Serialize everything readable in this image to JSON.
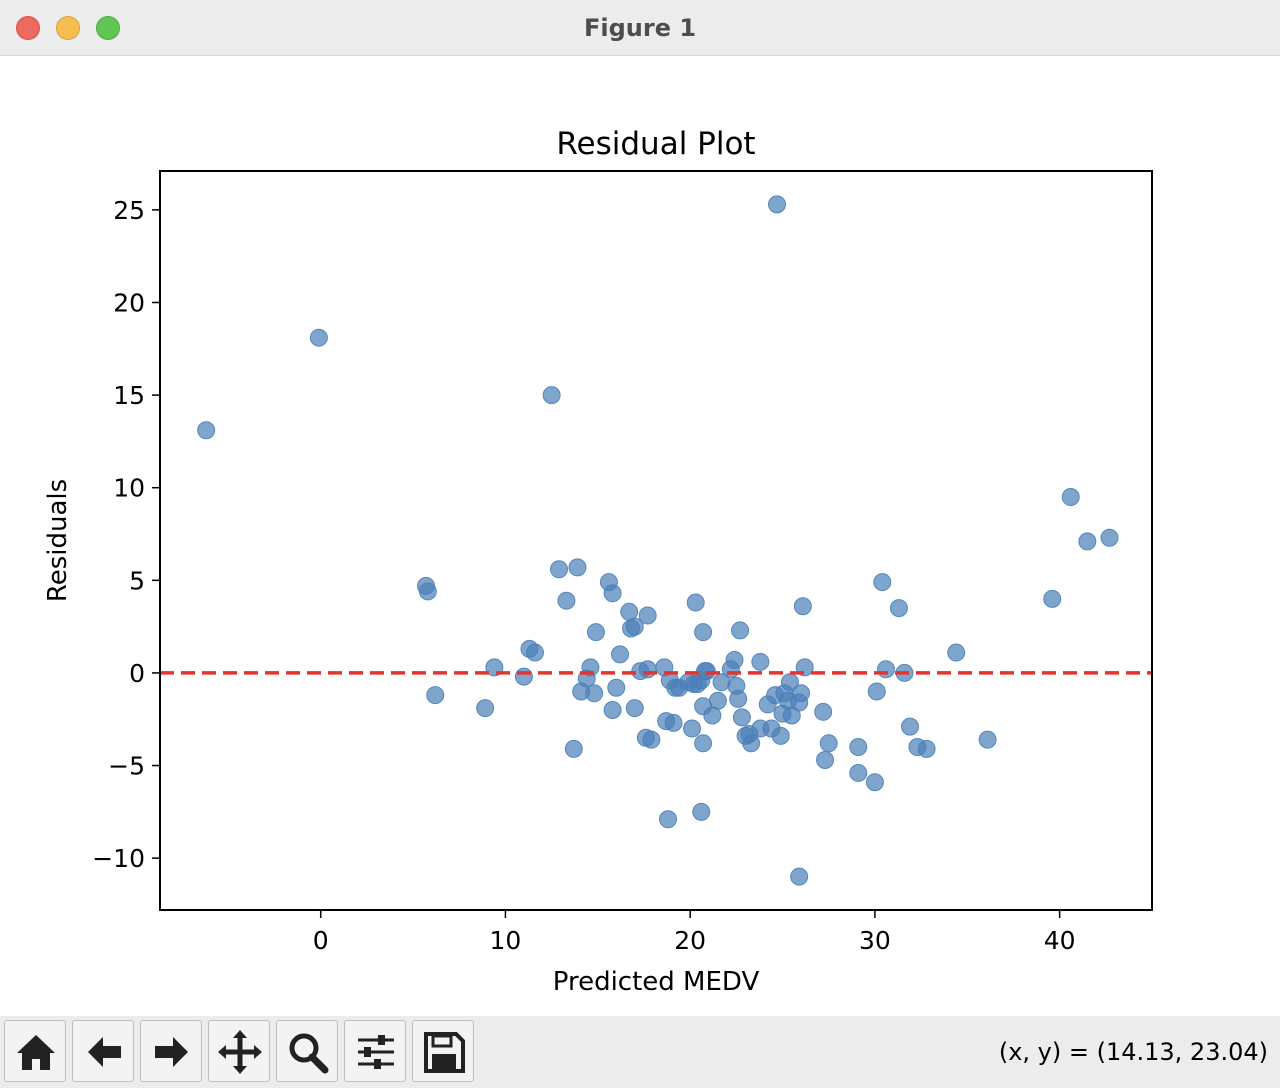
{
  "window": {
    "title": "Figure 1",
    "controls": [
      "close",
      "minimize",
      "maximize"
    ]
  },
  "toolbar": {
    "buttons": [
      {
        "name": "home",
        "icon": "home-icon"
      },
      {
        "name": "back",
        "icon": "arrow-left-icon"
      },
      {
        "name": "forward",
        "icon": "arrow-right-icon"
      },
      {
        "name": "pan",
        "icon": "move-icon"
      },
      {
        "name": "zoom",
        "icon": "magnifier-icon"
      },
      {
        "name": "configure-subplots",
        "icon": "sliders-icon"
      },
      {
        "name": "save",
        "icon": "floppy-disk-icon"
      }
    ],
    "coords_text": "(x, y) = (14.13, 23.04)"
  },
  "chart_data": {
    "type": "scatter",
    "title": "Residual Plot",
    "xlabel": "Predicted MEDV",
    "ylabel": "Residuals",
    "xlim": [
      -8.7,
      45
    ],
    "ylim": [
      -12.8,
      27.1
    ],
    "xticks": [
      0,
      10,
      20,
      30,
      40
    ],
    "yticks": [
      -10,
      -5,
      0,
      5,
      10,
      15,
      20,
      25
    ],
    "xtick_labels": [
      "0",
      "10",
      "20",
      "30",
      "40"
    ],
    "ytick_labels": [
      "−10",
      "−5",
      "0",
      "5",
      "10",
      "15",
      "20",
      "25"
    ],
    "grid": false,
    "legend": false,
    "point_color": "#4a7fb8",
    "point_alpha": 0.7,
    "reference_line": {
      "y": 0,
      "style": "dashed",
      "color": "#e3342f"
    },
    "points": [
      [
        -6.2,
        13.1
      ],
      [
        -0.1,
        18.1
      ],
      [
        5.7,
        4.7
      ],
      [
        5.8,
        4.4
      ],
      [
        6.2,
        -1.2
      ],
      [
        8.9,
        -1.9
      ],
      [
        9.4,
        0.3
      ],
      [
        11.0,
        -0.2
      ],
      [
        11.3,
        1.3
      ],
      [
        11.6,
        1.1
      ],
      [
        12.5,
        15.0
      ],
      [
        12.9,
        5.6
      ],
      [
        13.3,
        3.9
      ],
      [
        13.7,
        -4.1
      ],
      [
        13.9,
        5.7
      ],
      [
        14.1,
        -1.0
      ],
      [
        14.4,
        -0.3
      ],
      [
        14.6,
        0.3
      ],
      [
        14.8,
        -1.1
      ],
      [
        14.9,
        2.2
      ],
      [
        15.6,
        4.9
      ],
      [
        15.8,
        4.3
      ],
      [
        15.8,
        -2.0
      ],
      [
        16.0,
        -0.8
      ],
      [
        16.2,
        1.0
      ],
      [
        16.7,
        3.3
      ],
      [
        16.8,
        2.4
      ],
      [
        17.0,
        2.5
      ],
      [
        17.0,
        -1.9
      ],
      [
        17.3,
        0.1
      ],
      [
        17.6,
        -3.5
      ],
      [
        17.7,
        0.2
      ],
      [
        17.7,
        3.1
      ],
      [
        17.9,
        -3.6
      ],
      [
        18.6,
        0.3
      ],
      [
        18.7,
        -2.6
      ],
      [
        18.8,
        -7.9
      ],
      [
        18.9,
        -0.4
      ],
      [
        19.1,
        -2.7
      ],
      [
        19.2,
        -0.8
      ],
      [
        19.4,
        -0.8
      ],
      [
        19.9,
        -0.5
      ],
      [
        20.1,
        -3.0
      ],
      [
        20.2,
        -0.6
      ],
      [
        20.3,
        3.8
      ],
      [
        20.4,
        -0.6
      ],
      [
        20.6,
        -0.4
      ],
      [
        20.6,
        -7.5
      ],
      [
        20.7,
        -3.8
      ],
      [
        20.7,
        2.2
      ],
      [
        20.7,
        -1.8
      ],
      [
        20.8,
        0.1
      ],
      [
        20.9,
        0.1
      ],
      [
        21.2,
        -2.3
      ],
      [
        21.5,
        -1.5
      ],
      [
        21.7,
        -0.5
      ],
      [
        22.2,
        0.2
      ],
      [
        22.4,
        0.7
      ],
      [
        22.5,
        -0.7
      ],
      [
        22.6,
        -1.4
      ],
      [
        22.7,
        2.3
      ],
      [
        22.8,
        -2.4
      ],
      [
        23.0,
        -3.4
      ],
      [
        23.2,
        -3.3
      ],
      [
        23.3,
        -3.8
      ],
      [
        23.8,
        -3.0
      ],
      [
        23.8,
        0.6
      ],
      [
        24.2,
        -1.7
      ],
      [
        24.4,
        -3.0
      ],
      [
        24.6,
        -1.2
      ],
      [
        24.7,
        25.3
      ],
      [
        24.9,
        -3.4
      ],
      [
        25.0,
        -2.2
      ],
      [
        25.1,
        -1.1
      ],
      [
        25.3,
        -1.5
      ],
      [
        25.4,
        -0.5
      ],
      [
        25.5,
        -2.3
      ],
      [
        25.9,
        -11.0
      ],
      [
        25.9,
        -1.6
      ],
      [
        26.0,
        -1.1
      ],
      [
        26.1,
        3.6
      ],
      [
        26.2,
        0.3
      ],
      [
        27.2,
        -2.1
      ],
      [
        27.3,
        -4.7
      ],
      [
        27.5,
        -3.8
      ],
      [
        29.1,
        -4.0
      ],
      [
        29.1,
        -5.4
      ],
      [
        30.0,
        -5.9
      ],
      [
        30.1,
        -1.0
      ],
      [
        30.4,
        4.9
      ],
      [
        30.6,
        0.2
      ],
      [
        31.3,
        3.5
      ],
      [
        31.6,
        0.0
      ],
      [
        31.9,
        -2.9
      ],
      [
        32.3,
        -4.0
      ],
      [
        32.8,
        -4.1
      ],
      [
        34.4,
        1.1
      ],
      [
        36.1,
        -3.6
      ],
      [
        39.6,
        4.0
      ],
      [
        40.6,
        9.5
      ],
      [
        41.5,
        7.1
      ],
      [
        42.7,
        7.3
      ]
    ]
  }
}
